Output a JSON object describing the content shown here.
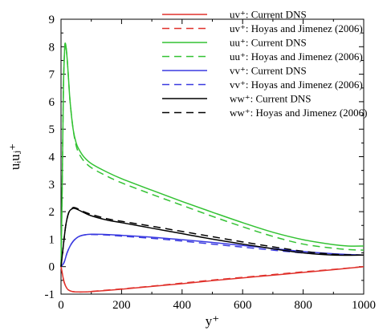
{
  "chart_data": {
    "type": "line",
    "xlabel": "y⁺",
    "ylabel": "uᵢuⱼ⁺",
    "xlim": [
      0,
      1000
    ],
    "ylim": [
      -1,
      9
    ],
    "xticks": [
      0,
      200,
      400,
      600,
      800,
      1000
    ],
    "yticks": [
      -1,
      0,
      1,
      2,
      3,
      4,
      5,
      6,
      7,
      8,
      9
    ],
    "grid": false,
    "legend_placement": "top-right",
    "series": [
      {
        "name": "uv⁺: Current DNS",
        "color": "#e0312b",
        "dash": "solid",
        "x": [
          0,
          10,
          20,
          30,
          40,
          50,
          75,
          100,
          200,
          300,
          400,
          500,
          600,
          700,
          800,
          900,
          1000
        ],
        "y": [
          0,
          -0.55,
          -0.8,
          -0.88,
          -0.91,
          -0.92,
          -0.92,
          -0.91,
          -0.82,
          -0.72,
          -0.62,
          -0.51,
          -0.41,
          -0.31,
          -0.21,
          -0.11,
          0.0
        ]
      },
      {
        "name": "uv⁺: Hoyas and Jimenez (2006)",
        "color": "#e0312b",
        "dash": "dashed",
        "x": [
          0,
          10,
          20,
          30,
          40,
          50,
          75,
          100,
          200,
          300,
          400,
          500,
          600,
          700,
          800,
          900,
          1000
        ],
        "y": [
          0,
          -0.55,
          -0.8,
          -0.88,
          -0.91,
          -0.92,
          -0.92,
          -0.9,
          -0.81,
          -0.71,
          -0.6,
          -0.49,
          -0.39,
          -0.29,
          -0.19,
          -0.1,
          0.0
        ]
      },
      {
        "name": "uu⁺: Current DNS",
        "color": "#33c233",
        "dash": "solid",
        "x": [
          0,
          4,
          8,
          12,
          15,
          20,
          25,
          30,
          40,
          50,
          60,
          75,
          100,
          150,
          200,
          300,
          400,
          500,
          600,
          700,
          800,
          900,
          950,
          1000
        ],
        "y": [
          0,
          3.0,
          6.5,
          7.9,
          8.1,
          7.6,
          6.8,
          6.0,
          5.0,
          4.5,
          4.25,
          4.0,
          3.75,
          3.45,
          3.2,
          2.78,
          2.37,
          1.98,
          1.6,
          1.25,
          0.98,
          0.8,
          0.75,
          0.75
        ]
      },
      {
        "name": "uu⁺: Hoyas and Jimenez (2006)",
        "color": "#33c233",
        "dash": "dashed",
        "x": [
          0,
          4,
          8,
          12,
          15,
          20,
          25,
          30,
          40,
          50,
          60,
          75,
          100,
          150,
          200,
          300,
          400,
          500,
          600,
          700,
          800,
          900,
          950,
          1000
        ],
        "y": [
          0,
          3.0,
          6.5,
          7.9,
          8.1,
          7.6,
          6.8,
          6.0,
          5.0,
          4.4,
          4.1,
          3.85,
          3.6,
          3.3,
          3.05,
          2.63,
          2.23,
          1.83,
          1.45,
          1.1,
          0.82,
          0.67,
          0.62,
          0.6
        ]
      },
      {
        "name": "vv⁺: Current DNS",
        "color": "#3a3ae0",
        "dash": "solid",
        "x": [
          0,
          10,
          20,
          30,
          40,
          50,
          60,
          75,
          100,
          150,
          200,
          300,
          400,
          500,
          600,
          700,
          800,
          900,
          1000
        ],
        "y": [
          0,
          0.15,
          0.5,
          0.75,
          0.92,
          1.03,
          1.1,
          1.15,
          1.18,
          1.17,
          1.14,
          1.07,
          0.98,
          0.88,
          0.77,
          0.66,
          0.55,
          0.47,
          0.42
        ]
      },
      {
        "name": "vv⁺: Hoyas and Jimenez (2006)",
        "color": "#3a3ae0",
        "dash": "dashed",
        "x": [
          0,
          10,
          20,
          30,
          40,
          50,
          60,
          75,
          100,
          150,
          200,
          300,
          400,
          500,
          600,
          700,
          800,
          900,
          1000
        ],
        "y": [
          0,
          0.15,
          0.5,
          0.75,
          0.92,
          1.03,
          1.1,
          1.15,
          1.17,
          1.15,
          1.11,
          1.03,
          0.93,
          0.82,
          0.71,
          0.6,
          0.5,
          0.44,
          0.42
        ]
      },
      {
        "name": "ww⁺: Current DNS",
        "color": "#000000",
        "dash": "solid",
        "x": [
          0,
          5,
          10,
          15,
          20,
          25,
          30,
          40,
          50,
          60,
          75,
          100,
          150,
          200,
          300,
          400,
          500,
          600,
          700,
          800,
          900,
          1000
        ],
        "y": [
          0,
          0.5,
          1.0,
          1.45,
          1.75,
          1.95,
          2.05,
          2.12,
          2.1,
          2.05,
          1.97,
          1.85,
          1.7,
          1.6,
          1.4,
          1.2,
          1.0,
          0.82,
          0.65,
          0.5,
          0.42,
          0.42
        ]
      },
      {
        "name": "ww⁺: Hoyas and Jimenez (2006)",
        "color": "#000000",
        "dash": "dashed",
        "x": [
          0,
          5,
          10,
          15,
          20,
          25,
          30,
          40,
          50,
          60,
          75,
          100,
          150,
          200,
          300,
          400,
          500,
          600,
          700,
          800,
          900,
          1000
        ],
        "y": [
          0,
          0.5,
          1.0,
          1.45,
          1.75,
          1.95,
          2.05,
          2.15,
          2.13,
          2.08,
          2.0,
          1.9,
          1.75,
          1.65,
          1.47,
          1.28,
          1.09,
          0.9,
          0.72,
          0.56,
          0.45,
          0.42
        ]
      }
    ]
  }
}
